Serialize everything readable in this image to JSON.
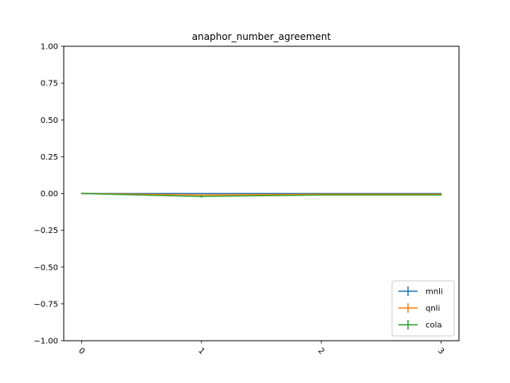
{
  "chart_data": {
    "type": "line",
    "title": "anaphor_number_agreement",
    "xlabel": "",
    "ylabel": "",
    "x": [
      0,
      1,
      2,
      3
    ],
    "x_tick_labels": [
      "0",
      "1",
      "2",
      "3"
    ],
    "y_tick_labels": [
      "1.00",
      "0.75",
      "0.50",
      "0.25",
      "0.00",
      "−0.25",
      "−0.50",
      "−0.75",
      "−1.00"
    ],
    "y_ticks": [
      1.0,
      0.75,
      0.5,
      0.25,
      0.0,
      -0.25,
      -0.5,
      -0.75,
      -1.0
    ],
    "ylim": [
      -1.0,
      1.0
    ],
    "xlim": [
      -0.15,
      3.15
    ],
    "grid": false,
    "legend_position": "bottom-right",
    "series": [
      {
        "name": "mnli",
        "color": "#1f77b4",
        "values": [
          0.0,
          0.0,
          0.0,
          0.0
        ],
        "errors": [
          0.003,
          0.003,
          0.003,
          0.003
        ]
      },
      {
        "name": "qnli",
        "color": "#ff7f0e",
        "values": [
          0.0,
          -0.01,
          -0.005,
          -0.005
        ],
        "errors": [
          0.003,
          0.003,
          0.003,
          0.003
        ]
      },
      {
        "name": "cola",
        "color": "#2ca02c",
        "values": [
          0.0,
          -0.02,
          -0.01,
          -0.01
        ],
        "errors": [
          0.004,
          0.008,
          0.004,
          0.004
        ]
      }
    ]
  }
}
